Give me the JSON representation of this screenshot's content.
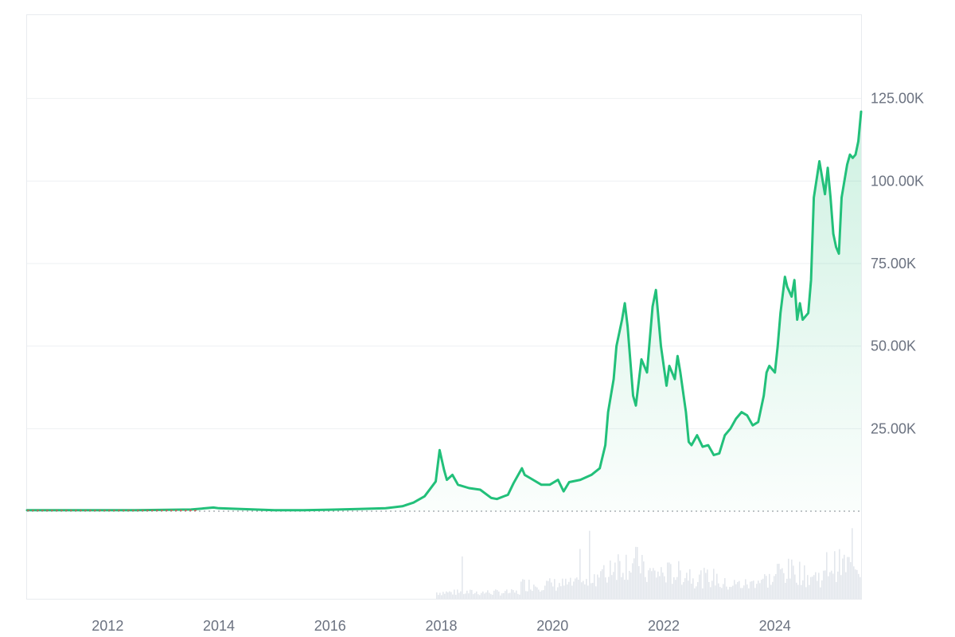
{
  "colors": {
    "line": "#22c07a",
    "grid": "#eef0f3",
    "text": "#6b7280",
    "volume": "#e3e7ec",
    "baseline": "#9aa0a6",
    "start": "#e0524d"
  },
  "chart_data": {
    "type": "area",
    "title": "",
    "xlabel": "",
    "ylabel": "",
    "xlim": [
      2010.55,
      2025.55
    ],
    "ylim": [
      0,
      150000
    ],
    "grid": true,
    "y_ticks": [
      {
        "value": 25000,
        "label": "25.00K"
      },
      {
        "value": 50000,
        "label": "50.00K"
      },
      {
        "value": 75000,
        "label": "75.00K"
      },
      {
        "value": 100000,
        "label": "100.00K"
      },
      {
        "value": 125000,
        "label": "125.00K"
      }
    ],
    "x_ticks": [
      {
        "value": 2012,
        "label": "2012"
      },
      {
        "value": 2014,
        "label": "2014"
      },
      {
        "value": 2016,
        "label": "2016"
      },
      {
        "value": 2018,
        "label": "2018"
      },
      {
        "value": 2020,
        "label": "2020"
      },
      {
        "value": 2022,
        "label": "2022"
      },
      {
        "value": 2024,
        "label": "2024"
      }
    ],
    "series": [
      {
        "x": [
          2010.55,
          2011.5,
          2012.5,
          2013.5,
          2013.9,
          2014.0,
          2014.5,
          2015.0,
          2015.5,
          2016.0,
          2016.5,
          2017.0,
          2017.3,
          2017.5,
          2017.7,
          2017.9,
          2017.97,
          2018.05,
          2018.1,
          2018.2,
          2018.3,
          2018.5,
          2018.7,
          2018.9,
          2019.0,
          2019.2,
          2019.3,
          2019.45,
          2019.5,
          2019.6,
          2019.8,
          2019.95,
          2020.1,
          2020.2,
          2020.3,
          2020.5,
          2020.7,
          2020.85,
          2020.95,
          2021.0,
          2021.1,
          2021.15,
          2021.25,
          2021.3,
          2021.35,
          2021.45,
          2021.5,
          2021.6,
          2021.7,
          2021.8,
          2021.86,
          2021.95,
          2022.05,
          2022.1,
          2022.2,
          2022.25,
          2022.3,
          2022.4,
          2022.45,
          2022.5,
          2022.6,
          2022.7,
          2022.8,
          2022.9,
          2023.0,
          2023.1,
          2023.2,
          2023.3,
          2023.4,
          2023.5,
          2023.6,
          2023.7,
          2023.8,
          2023.85,
          2023.9,
          2024.0,
          2024.05,
          2024.1,
          2024.18,
          2024.22,
          2024.3,
          2024.35,
          2024.4,
          2024.45,
          2024.5,
          2024.6,
          2024.65,
          2024.7,
          2024.8,
          2024.9,
          2024.95,
          2025.0,
          2025.05,
          2025.1,
          2025.15,
          2025.2,
          2025.3,
          2025.35,
          2025.4,
          2025.45,
          2025.5,
          2025.55
        ],
        "values": [
          300,
          300,
          300,
          500,
          1100,
          900,
          600,
          300,
          300,
          450,
          650,
          900,
          1500,
          2600,
          4500,
          9000,
          18500,
          12500,
          9500,
          11000,
          8000,
          7000,
          6500,
          4000,
          3700,
          5000,
          8500,
          13000,
          11000,
          10000,
          8000,
          8000,
          9500,
          6000,
          8800,
          9500,
          11000,
          13000,
          20000,
          30000,
          40000,
          50000,
          58000,
          63000,
          56000,
          35000,
          32000,
          46000,
          42000,
          62000,
          67000,
          50000,
          38000,
          44000,
          40000,
          47000,
          42000,
          30000,
          21000,
          20000,
          23000,
          19500,
          20000,
          17000,
          17500,
          23000,
          25000,
          28000,
          30000,
          29000,
          26000,
          27000,
          35000,
          42000,
          44000,
          42000,
          50000,
          60000,
          71000,
          68000,
          65000,
          70000,
          58000,
          63000,
          58000,
          60000,
          70000,
          95000,
          106000,
          96000,
          104000,
          95000,
          84000,
          80000,
          78000,
          95000,
          105000,
          108000,
          107000,
          108000,
          112000,
          121000
        ]
      }
    ],
    "start_marker": true
  }
}
